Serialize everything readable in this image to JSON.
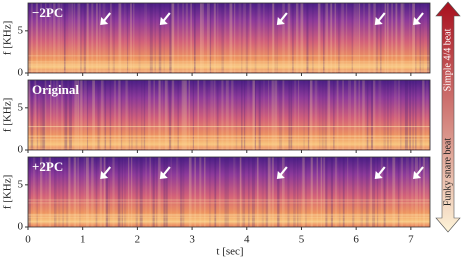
{
  "chart_data": {
    "type": "spectrogram",
    "x_label": "t [sec]",
    "y_label": "f [KHz]",
    "xlim": [
      0,
      7.35
    ],
    "xticks": [
      0,
      1,
      2,
      3,
      4,
      5,
      6,
      7
    ],
    "ylim": [
      0,
      8.3
    ],
    "yticks": [
      0,
      5
    ],
    "panels": [
      {
        "label": "−2PC",
        "arrows": [
          1.32,
          2.41,
          4.55,
          6.34,
          7.04
        ]
      },
      {
        "label": "Original"
      },
      {
        "label": "+2PC",
        "arrows": [
          1.32,
          2.41,
          4.55,
          6.34,
          7.04
        ]
      }
    ],
    "colorbar": {
      "top_label": "Simple 4/4 beat",
      "bottom_label": "Funky snare beat",
      "top_color": "#a8101e",
      "bottom_color": "#fdf3d8"
    }
  }
}
